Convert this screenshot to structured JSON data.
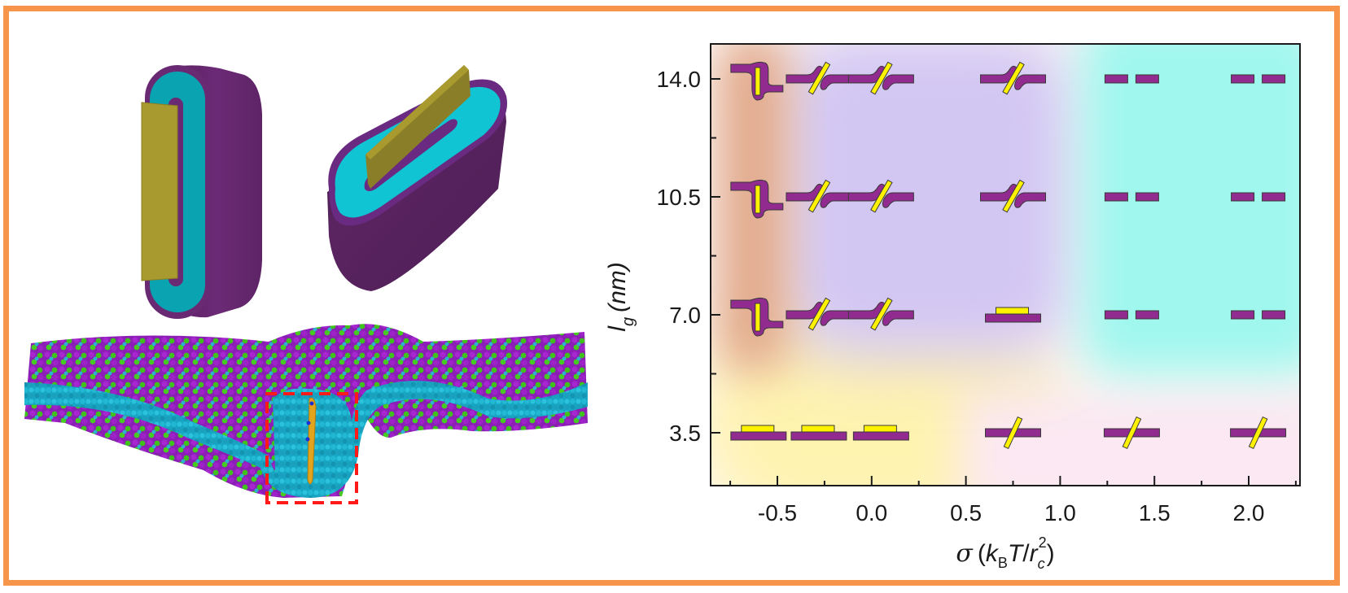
{
  "figure": {
    "frame_color": "#F7964A",
    "illustrations": [
      {
        "name": "wrapped-disk-vertical",
        "colors": {
          "outer": "#6A2A73",
          "inner": "#0AA3B1",
          "slab": "#A89A2E"
        }
      },
      {
        "name": "wrapped-disk-tilted",
        "colors": {
          "outer": "#5A2460",
          "inner": "#10C4D3",
          "slab": "#8A7E28"
        }
      },
      {
        "name": "membrane-snapshot",
        "colors": {
          "heads_purple": "#9B1FC4",
          "heads_green": "#3FC21A",
          "tails": "#15A9C8",
          "nanoparticle": "#E2A41C"
        },
        "highlight_box_color": "#FF1A1A"
      }
    ]
  },
  "chart_data": {
    "type": "scatter",
    "title": "",
    "xlabel": {
      "symbol": "σ",
      "open": "(",
      "k": "k",
      "k_sub": "B",
      "T": "T",
      "slash": "/",
      "r": "r",
      "r_sub": "c",
      "r_sup": "2",
      "close": ")"
    },
    "ylabel": {
      "symbol": "l",
      "sub": "g",
      "unit": "(nm)"
    },
    "xlim": [
      -0.8,
      2.3
    ],
    "ylim": [
      2.0,
      15.2
    ],
    "xticks": [
      -0.5,
      0.0,
      0.5,
      1.0,
      1.5,
      2.0
    ],
    "xtick_labels": [
      "-0.5",
      "0.0",
      "0.5",
      "1.0",
      "1.5",
      "2.0"
    ],
    "x_minor_ticks": [
      -0.75,
      -0.25,
      0.25,
      0.75,
      1.25,
      1.75,
      2.25
    ],
    "yticks": [
      3.5,
      7.0,
      10.5,
      14.0
    ],
    "ytick_labels": [
      "3.5",
      "7.0",
      "10.5",
      "14.0"
    ],
    "y_minor_ticks": [
      5.25,
      8.75,
      12.25
    ],
    "grid": false,
    "legend": "none",
    "state_colors": {
      "membrane": "#922B8F",
      "particle": "#FFF200",
      "outline": "#3A3A3A"
    },
    "regions": [
      {
        "state": "wrapped",
        "color": "#E2A98A"
      },
      {
        "state": "penetrating-tilted",
        "color": "#D3C8F2"
      },
      {
        "state": "adsorbed",
        "color": "#FFF6C2"
      },
      {
        "state": "pore",
        "color": "#9FF6EE"
      },
      {
        "state": "inserted-low",
        "color": "#FBEFF6"
      }
    ],
    "points": [
      {
        "x": -0.6,
        "y": 14.0,
        "state": "wrapped"
      },
      {
        "x": -0.28,
        "y": 14.0,
        "state": "penetrating-tilted"
      },
      {
        "x": 0.05,
        "y": 14.0,
        "state": "penetrating-tilted"
      },
      {
        "x": 0.75,
        "y": 14.0,
        "state": "penetrating-tilted"
      },
      {
        "x": 1.38,
        "y": 14.0,
        "state": "pore"
      },
      {
        "x": 2.05,
        "y": 14.0,
        "state": "pore"
      },
      {
        "x": -0.6,
        "y": 10.5,
        "state": "wrapped"
      },
      {
        "x": -0.28,
        "y": 10.5,
        "state": "penetrating-tilted"
      },
      {
        "x": 0.05,
        "y": 10.5,
        "state": "penetrating-tilted"
      },
      {
        "x": 0.75,
        "y": 10.5,
        "state": "penetrating-tilted"
      },
      {
        "x": 1.38,
        "y": 10.5,
        "state": "pore"
      },
      {
        "x": 2.05,
        "y": 10.5,
        "state": "pore"
      },
      {
        "x": -0.6,
        "y": 7.0,
        "state": "wrapped"
      },
      {
        "x": -0.28,
        "y": 7.0,
        "state": "penetrating-tilted"
      },
      {
        "x": 0.05,
        "y": 7.0,
        "state": "penetrating-tilted"
      },
      {
        "x": 0.75,
        "y": 7.0,
        "state": "adsorbed"
      },
      {
        "x": 1.38,
        "y": 7.0,
        "state": "pore"
      },
      {
        "x": 2.05,
        "y": 7.0,
        "state": "pore"
      },
      {
        "x": -0.6,
        "y": 3.5,
        "state": "adsorbed"
      },
      {
        "x": -0.28,
        "y": 3.5,
        "state": "adsorbed"
      },
      {
        "x": 0.05,
        "y": 3.5,
        "state": "adsorbed"
      },
      {
        "x": 0.75,
        "y": 3.5,
        "state": "inserted"
      },
      {
        "x": 1.38,
        "y": 3.5,
        "state": "inserted"
      },
      {
        "x": 2.05,
        "y": 3.5,
        "state": "inserted"
      }
    ]
  }
}
